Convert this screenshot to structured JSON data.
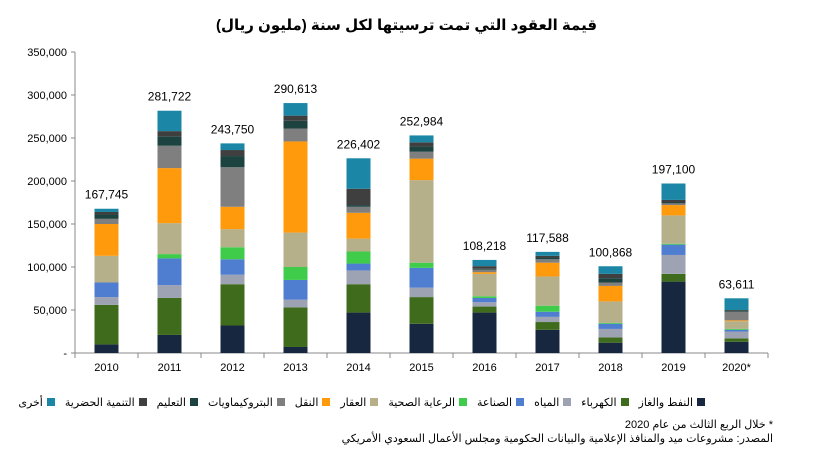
{
  "title": "قيمة العقود التي تمت ترسيتها لكل سنة (مليون ريال)",
  "footnotes": {
    "note": "* خلال الربع الثالث من عام 2020",
    "source": "المصدر: مشروعات ميد والمنافذ الإعلامية والبيانات الحكومية ومجلس الأعمال السعودي الأمريكي"
  },
  "chart_data": {
    "type": "bar",
    "stacked": true,
    "title": "قيمة العقود التي تمت ترسيتها لكل سنة (مليون ريال)",
    "categories": [
      "2010",
      "2011",
      "2012",
      "2013",
      "2014",
      "2015",
      "2016",
      "2017",
      "2018",
      "2019",
      "2020*"
    ],
    "totals": [
      167745,
      281722,
      243750,
      290613,
      226402,
      252984,
      108218,
      117588,
      100868,
      197100,
      63611
    ],
    "total_labels": [
      "167,745",
      "281,722",
      "243,750",
      "290,613",
      "226,402",
      "252,984",
      "108,218",
      "117,588",
      "100,868",
      "197,100",
      "63,611"
    ],
    "ylim": [
      0,
      350000
    ],
    "yticks": [
      0,
      50000,
      100000,
      150000,
      200000,
      250000,
      300000,
      350000
    ],
    "ytick_labels": [
      "-",
      "50,000",
      "100,000",
      "150,000",
      "200,000",
      "250,000",
      "300,000",
      "350,000"
    ],
    "legend_position": "bottom",
    "series": [
      {
        "name": "النفط والغاز",
        "color": "#17273f",
        "values": [
          10000,
          21000,
          32000,
          7000,
          47000,
          34000,
          47000,
          27000,
          12000,
          83000,
          13000
        ]
      },
      {
        "name": "الكهرباء",
        "color": "#3f6b1c",
        "values": [
          46000,
          43000,
          48000,
          46000,
          33000,
          31000,
          7000,
          9000,
          6000,
          9000,
          4000
        ]
      },
      {
        "name": "المياه",
        "color": "#9ea3b4",
        "values": [
          9000,
          15000,
          11000,
          9000,
          16000,
          11000,
          5000,
          6000,
          10000,
          22000,
          8000
        ]
      },
      {
        "name": "الصناعة",
        "color": "#4f7dcf",
        "values": [
          17000,
          31000,
          18000,
          23000,
          8000,
          23000,
          5000,
          6000,
          6000,
          12000,
          2000
        ]
      },
      {
        "name": "الرعاية الصحية",
        "color": "#3ecc4a",
        "values": [
          0,
          5000,
          14000,
          15000,
          14000,
          6000,
          2000,
          7000,
          1000,
          1000,
          1000
        ]
      },
      {
        "name": "العقار",
        "color": "#b5b08a",
        "values": [
          31000,
          36000,
          21000,
          40000,
          15000,
          96000,
          26000,
          34000,
          25000,
          33000,
          9000
        ]
      },
      {
        "name": "النقل",
        "color": "#ff9a0d",
        "values": [
          37000,
          64000,
          26000,
          106000,
          30000,
          25000,
          2000,
          16000,
          18000,
          12000,
          1000
        ]
      },
      {
        "name": "البتروكيماويات",
        "color": "#7f7f7f",
        "values": [
          6000,
          26000,
          46000,
          15000,
          7000,
          8000,
          3000,
          4000,
          4000,
          2000,
          10000
        ]
      },
      {
        "name": "التعليم",
        "color": "#1c4340",
        "values": [
          5000,
          11000,
          13000,
          9000,
          2000,
          6000,
          1000,
          2000,
          5000,
          1000,
          1000
        ]
      },
      {
        "name": "التنمية الحضرية",
        "color": "#3f3f3f",
        "values": [
          3000,
          6000,
          7000,
          6000,
          19000,
          5000,
          3000,
          2000,
          5000,
          3000,
          1000
        ]
      },
      {
        "name": "أخرى",
        "color": "#1b86a6",
        "values": [
          3745,
          23722,
          7750,
          14613,
          35402,
          7984,
          7218,
          4588,
          8868,
          19100,
          13611
        ]
      }
    ]
  }
}
